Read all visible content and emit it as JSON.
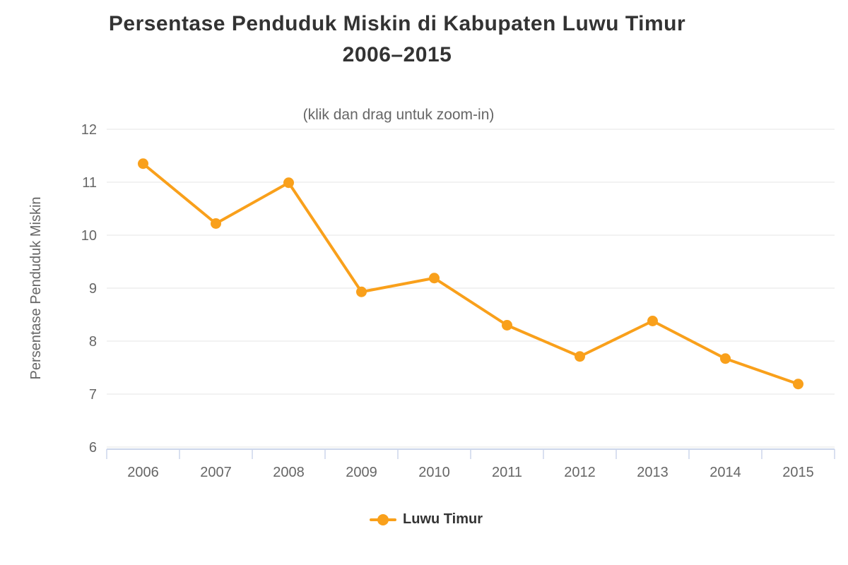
{
  "chart_data": {
    "type": "line",
    "title": "Persentase Penduduk Miskin di Kabupaten Luwu Timur 2006–2015",
    "title_line1": "Persentase Penduduk Miskin di Kabupaten Luwu Timur",
    "title_line2": "2006–2015",
    "subtitle": "(klik dan drag untuk zoom-in)",
    "categories": [
      "2006",
      "2007",
      "2008",
      "2009",
      "2010",
      "2011",
      "2012",
      "2013",
      "2014",
      "2015"
    ],
    "series": [
      {
        "name": "Luwu Timur",
        "values": [
          11.35,
          10.22,
          10.99,
          8.93,
          9.19,
          8.3,
          7.71,
          8.38,
          7.67,
          7.19
        ],
        "color": "#f9a01b"
      }
    ],
    "xlabel": "",
    "ylabel": "Persentase Penduduk Miskin",
    "ylim": [
      6,
      12
    ],
    "ytick_step": 1,
    "grid": true,
    "legend_position": "bottom"
  },
  "colors": {
    "title": "#333333",
    "labels": "#666666",
    "grid": "#e6e6e6",
    "axis": "#ccd6eb",
    "background": "#ffffff"
  }
}
